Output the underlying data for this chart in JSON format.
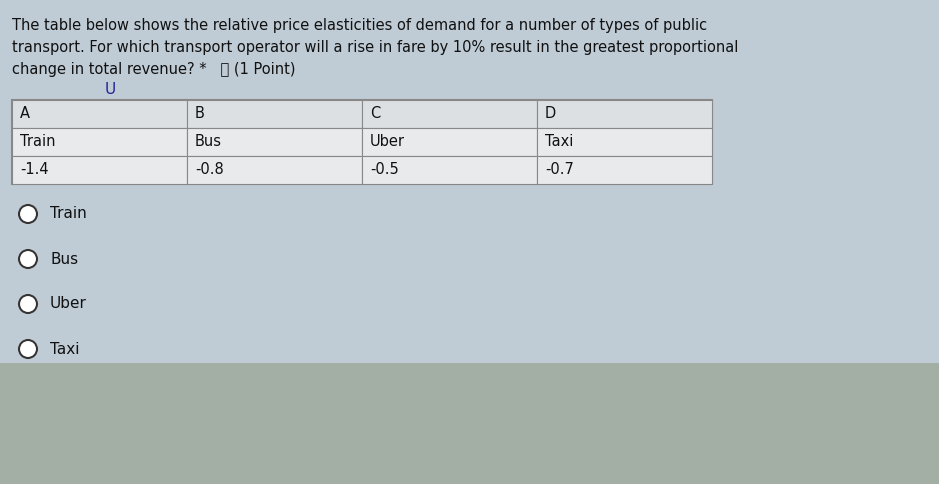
{
  "question_text_line1": "The table below shows the relative price elasticities of demand for a number of types of public",
  "question_text_line2": "transport. For which transport operator will a rise in fare by 10% result in the greatest proportional",
  "question_text_line3": "change in total revenue? *  ⧨ (1 Point)",
  "table_headers": [
    "A",
    "B",
    "C",
    "D"
  ],
  "table_row1": [
    "Train",
    "Bus",
    "Uber",
    "Taxi"
  ],
  "table_row2": [
    "-1.4",
    "-0.8",
    "-0.5",
    "-0.7"
  ],
  "options": [
    "Train",
    "Bus",
    "Uber",
    "Taxi"
  ],
  "bg_color_top": "#c8d8e8",
  "bg_color_bottom": "#c8cdd4",
  "table_bg": "#e8eaec",
  "table_header_bg": "#dde0e3",
  "table_border_color": "#888888",
  "text_color": "#111111",
  "option_circle_color": "#333333",
  "fig_width": 9.39,
  "fig_height": 4.84
}
